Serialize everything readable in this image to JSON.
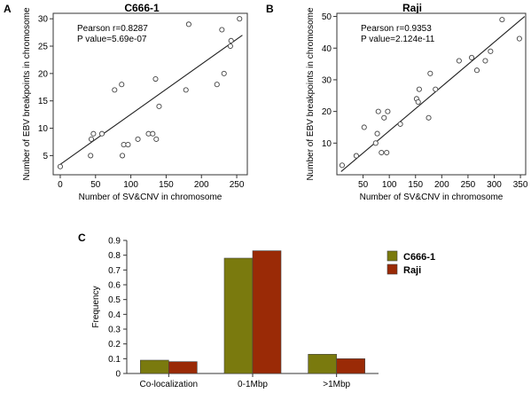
{
  "panels": {
    "a": {
      "letter": "A",
      "title": "C666-1"
    },
    "b": {
      "letter": "B",
      "title": "Raji"
    },
    "c": {
      "letter": "C"
    }
  },
  "colors": {
    "c666": "#7a7a0e",
    "raji": "#9a2a06",
    "axis": "#333333"
  },
  "chart_data": [
    {
      "type": "scatter",
      "title": "C666-1",
      "xlabel": "Number of SV&CNV in chromosome",
      "ylabel": "Number of EBV breakpoints in chromosome",
      "annotations": [
        "Pearson r=0.8287",
        "P value=5.69e-07"
      ],
      "xlim": [
        -10,
        265
      ],
      "ylim": [
        1.5,
        31
      ],
      "xticks": [
        0,
        50,
        100,
        150,
        200,
        250
      ],
      "yticks": [
        5,
        10,
        15,
        20,
        25,
        30
      ],
      "points": [
        [
          0,
          3
        ],
        [
          43,
          5
        ],
        [
          44,
          8
        ],
        [
          47,
          9
        ],
        [
          59,
          9
        ],
        [
          77,
          17
        ],
        [
          87,
          18
        ],
        [
          88,
          5
        ],
        [
          90,
          7
        ],
        [
          96,
          7
        ],
        [
          110,
          8
        ],
        [
          125,
          9
        ],
        [
          131,
          9
        ],
        [
          136,
          8
        ],
        [
          135,
          19
        ],
        [
          140,
          14
        ],
        [
          178,
          17
        ],
        [
          182,
          29
        ],
        [
          222,
          18
        ],
        [
          229,
          28
        ],
        [
          232,
          20
        ],
        [
          241,
          25
        ],
        [
          242,
          26
        ],
        [
          254,
          30
        ]
      ],
      "fit_line": [
        [
          0,
          3.4
        ],
        [
          258,
          27
        ]
      ]
    },
    {
      "type": "scatter",
      "title": "Raji",
      "xlabel": "Number of SV&CNV in chromosome",
      "ylabel": "Number of EBV breakpoints in chromosome",
      "annotations": [
        "Pearson r=0.9353",
        "P value=2.124e-11"
      ],
      "xlim": [
        0,
        360
      ],
      "ylim": [
        0,
        51
      ],
      "xticks": [
        50,
        100,
        150,
        200,
        250,
        300,
        350
      ],
      "yticks": [
        10,
        20,
        30,
        40,
        50
      ],
      "points": [
        [
          10,
          3
        ],
        [
          37,
          6
        ],
        [
          52,
          15
        ],
        [
          74,
          10
        ],
        [
          77,
          13
        ],
        [
          79,
          20
        ],
        [
          85,
          7
        ],
        [
          90,
          18
        ],
        [
          95,
          7
        ],
        [
          97,
          20
        ],
        [
          121,
          16
        ],
        [
          152,
          24
        ],
        [
          155,
          23
        ],
        [
          157,
          27
        ],
        [
          175,
          18
        ],
        [
          178,
          32
        ],
        [
          188,
          27
        ],
        [
          233,
          36
        ],
        [
          257,
          37
        ],
        [
          267,
          33
        ],
        [
          283,
          36
        ],
        [
          293,
          39
        ],
        [
          315,
          49
        ],
        [
          348,
          43
        ]
      ],
      "fit_line": [
        [
          8,
          1
        ],
        [
          358,
          50
        ]
      ]
    },
    {
      "type": "bar",
      "ylabel": "Frequency",
      "categories": [
        "Co-localization",
        "0-1Mbp",
        ">1Mbp"
      ],
      "ylim": [
        0,
        0.9
      ],
      "yticks": [
        "0",
        "0.1",
        "0.2",
        "0.3",
        "0.4",
        "0.5",
        "0.6",
        "0.7",
        "0.8",
        "0.9"
      ],
      "series": [
        {
          "name": "C666-1",
          "values": [
            0.09,
            0.78,
            0.13
          ]
        },
        {
          "name": "Raji",
          "values": [
            0.08,
            0.83,
            0.1
          ]
        }
      ],
      "legend": "right"
    }
  ]
}
